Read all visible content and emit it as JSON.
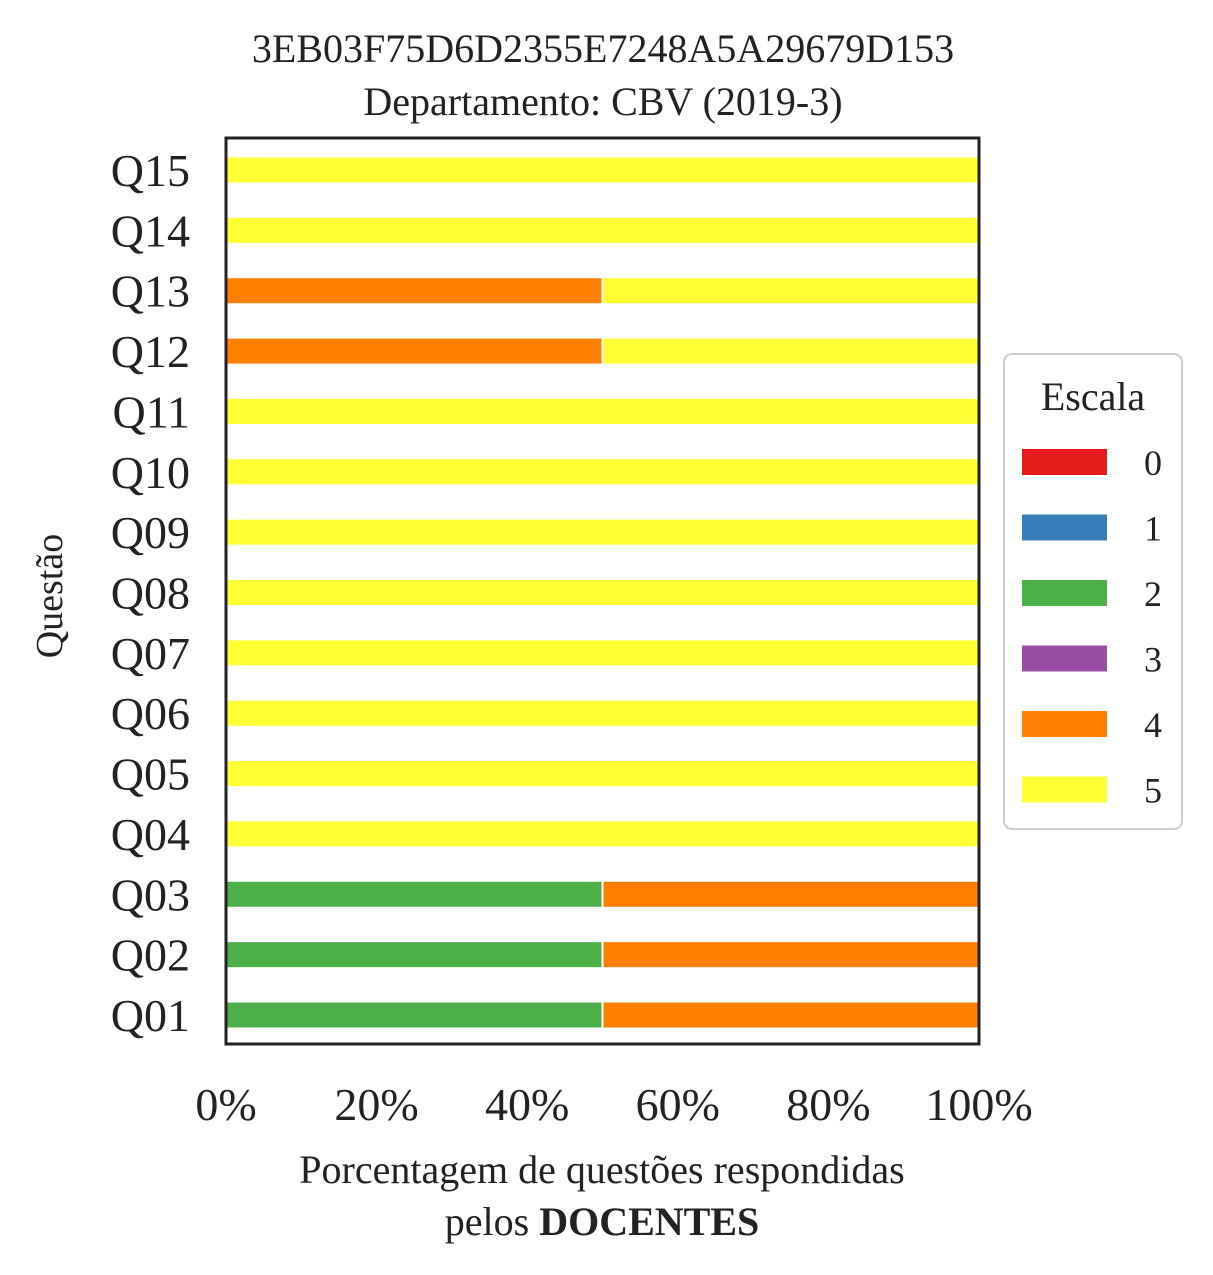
{
  "chart_data": {
    "type": "bar",
    "orientation": "horizontal",
    "stacked": true,
    "title": "3EB03F75D6D2355E7248A5A29679D153",
    "subtitle": "Departamento: CBV (2019-3)",
    "ylabel": "Questão",
    "xlabel_line1": "Porcentagem de questões respondidas",
    "xlabel_line2_prefix": "pelos ",
    "xlabel_line2_bold": "DOCENTES",
    "xlim": [
      0,
      100
    ],
    "xticks": [
      "0%",
      "20%",
      "40%",
      "60%",
      "80%",
      "100%"
    ],
    "xtick_values": [
      0,
      20,
      40,
      60,
      80,
      100
    ],
    "categories": [
      "Q01",
      "Q02",
      "Q03",
      "Q04",
      "Q05",
      "Q06",
      "Q07",
      "Q08",
      "Q09",
      "Q10",
      "Q11",
      "Q12",
      "Q13",
      "Q14",
      "Q15"
    ],
    "series": [
      {
        "name": "0",
        "color": "#e41a1c",
        "values": [
          0,
          0,
          0,
          0,
          0,
          0,
          0,
          0,
          0,
          0,
          0,
          0,
          0,
          0,
          0
        ]
      },
      {
        "name": "1",
        "color": "#377eb8",
        "values": [
          0,
          0,
          0,
          0,
          0,
          0,
          0,
          0,
          0,
          0,
          0,
          0,
          0,
          0,
          0
        ]
      },
      {
        "name": "2",
        "color": "#4daf4a",
        "values": [
          50,
          50,
          50,
          0,
          0,
          0,
          0,
          0,
          0,
          0,
          0,
          0,
          0,
          0,
          0
        ]
      },
      {
        "name": "3",
        "color": "#984ea3",
        "values": [
          0,
          0,
          0,
          0,
          0,
          0,
          0,
          0,
          0,
          0,
          0,
          0,
          0,
          0,
          0
        ]
      },
      {
        "name": "4",
        "color": "#ff7f00",
        "values": [
          50,
          50,
          50,
          0,
          0,
          0,
          0,
          0,
          0,
          0,
          0,
          50,
          50,
          0,
          0
        ]
      },
      {
        "name": "5",
        "color": "#ffff33",
        "values": [
          0,
          0,
          0,
          100,
          100,
          100,
          100,
          100,
          100,
          100,
          100,
          50,
          50,
          100,
          100
        ]
      }
    ],
    "legend": {
      "title": "Escala",
      "placement": "right"
    },
    "grid": false
  }
}
